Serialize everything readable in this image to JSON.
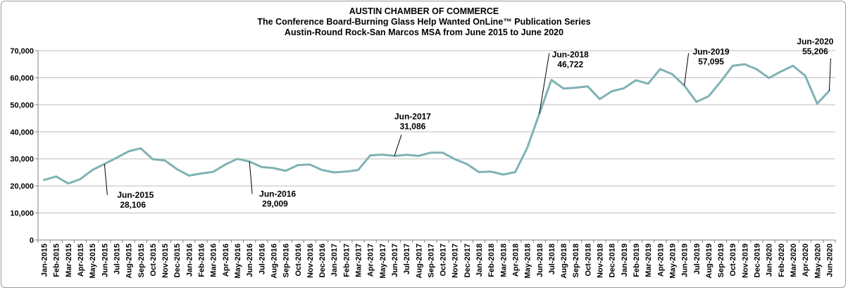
{
  "titles": {
    "line1": "AUSTIN CHAMBER  OF COMMERCE",
    "line2": "The Conference Board-Burning  Glass  Help Wanted OnLine™ Publication Series",
    "line3": "Austin-Round  Rock-San Marcos MSA from June 2015 to June 2020"
  },
  "chart_data": {
    "type": "line",
    "title": "AUSTIN CHAMBER  OF COMMERCE",
    "subtitle": "The Conference Board-Burning  Glass  Help Wanted OnLine™ Publication Series / Austin-Round  Rock-San Marcos MSA from June 2015 to June 2020",
    "xlabel": "",
    "ylabel": "",
    "ylim": [
      0,
      70000
    ],
    "yticks": [
      "0",
      "10,000",
      "20,000",
      "30,000",
      "40,000",
      "50,000",
      "60,000",
      "70,000"
    ],
    "grid": true,
    "legend": "none",
    "line_color": "#7fb2b4",
    "categories": [
      "Jan-2015",
      "Feb-2015",
      "Mar-2015",
      "Apr-2015",
      "May-2015",
      "Jun-2015",
      "Jul-2015",
      "Aug-2015",
      "Sep-2015",
      "Oct-2015",
      "Nov-2015",
      "Dec-2015",
      "Jan-2016",
      "Feb-2016",
      "Mar-2016",
      "Apr-2016",
      "May-2016",
      "Jun-2016",
      "Jul-2016",
      "Aug-2016",
      "Sep-2016",
      "Oct-2016",
      "Nov-2016",
      "Dec-2016",
      "Jan-2017",
      "Feb-2017",
      "Mar-2017",
      "Apr-2017",
      "May-2017",
      "Jun-2017",
      "Jul-2017",
      "Aug-2017",
      "Sep-2017",
      "Oct-2017",
      "Nov-2017",
      "Dec-2017",
      "Jan-2018",
      "Feb-2018",
      "Mar-2018",
      "Apr-2018",
      "May-2018",
      "Jun-2018",
      "Jul-2018",
      "Aug-2018",
      "Sep-2018",
      "Oct-2018",
      "Nov-2018",
      "Dec-2018",
      "Jan-2019",
      "Feb-2019",
      "Mar-2019",
      "Apr-2019",
      "May-2019",
      "Jun-2019",
      "Jul-2019",
      "Aug-2019",
      "Sep-2019",
      "Oct-2019",
      "Nov-2019",
      "Dec-2019",
      "Jan-2020",
      "Feb-2020",
      "Mar-2020",
      "Apr-2020",
      "May-2020",
      "Jun-2020"
    ],
    "values": [
      22200,
      23500,
      20900,
      22500,
      25900,
      28106,
      30400,
      32800,
      33900,
      29900,
      29400,
      26200,
      23800,
      24600,
      25200,
      27900,
      30000,
      29009,
      27000,
      26600,
      25600,
      27700,
      27900,
      25900,
      25000,
      25300,
      25900,
      31300,
      31600,
      31086,
      31500,
      31100,
      32300,
      32300,
      29900,
      28100,
      25100,
      25300,
      24200,
      25100,
      34100,
      46722,
      59200,
      56000,
      56300,
      56800,
      52100,
      55000,
      56100,
      59100,
      57800,
      63200,
      61300,
      57095,
      51100,
      53100,
      58500,
      64400,
      65000,
      63100,
      59900,
      62300,
      64400,
      60800,
      50400,
      55206
    ],
    "annotations": [
      {
        "category": "Jun-2015",
        "label": "Jun-2015",
        "value_label": "28,106"
      },
      {
        "category": "Jun-2016",
        "label": "Jun-2016",
        "value_label": "29,009"
      },
      {
        "category": "Jun-2017",
        "label": "Jun-2017",
        "value_label": "31,086"
      },
      {
        "category": "Jun-2018",
        "label": "Jun-2018",
        "value_label": "46,722"
      },
      {
        "category": "Jun-2019",
        "label": "Jun-2019",
        "value_label": "57,095"
      },
      {
        "category": "Jun-2020",
        "label": "Jun-2020",
        "value_label": "55,206"
      }
    ]
  }
}
